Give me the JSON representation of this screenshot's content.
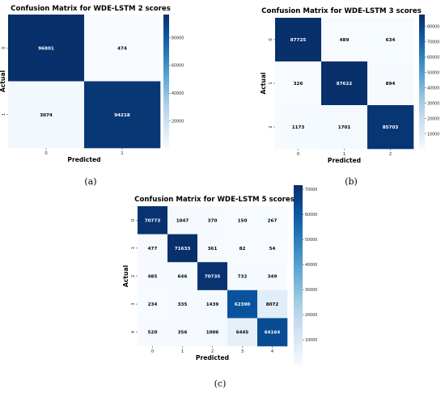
{
  "chart_data": [
    {
      "type": "heatmap",
      "title": "Confusion Matrix for WDE-LSTM 2 scores",
      "xlabel": "Predicted",
      "ylabel": "Actual",
      "x_ticks": [
        "0",
        "1"
      ],
      "y_ticks": [
        "0",
        "1"
      ],
      "matrix": [
        [
          96801,
          474
        ],
        [
          3074,
          94218
        ]
      ],
      "colorbar": {
        "min": 474,
        "max": 96801,
        "ticks": [
          20000,
          40000,
          60000,
          80000
        ]
      },
      "caption": "(a)"
    },
    {
      "type": "heatmap",
      "title": "Confusion Matrix for WDE-LSTM 3 scores",
      "xlabel": "Predicted",
      "ylabel": "Actual",
      "x_ticks": [
        "0",
        "1",
        "2"
      ],
      "y_ticks": [
        "0",
        "1",
        "2"
      ],
      "matrix": [
        [
          87725,
          489,
          634
        ],
        [
          326,
          87622,
          894
        ],
        [
          1173,
          1701,
          85703
        ]
      ],
      "colorbar": {
        "min": 326,
        "max": 87725,
        "ticks": [
          10000,
          20000,
          30000,
          40000,
          50000,
          60000,
          70000,
          80000
        ]
      },
      "caption": "(b)"
    },
    {
      "type": "heatmap",
      "title": "Confusion Matrix for WDE-LSTM 5 scores",
      "xlabel": "Predicted",
      "ylabel": "Actual",
      "x_ticks": [
        "0",
        "1",
        "2",
        "3",
        "4"
      ],
      "y_ticks": [
        "0",
        "1",
        "2",
        "3",
        "4"
      ],
      "matrix": [
        [
          70773,
          1047,
          370,
          150,
          267
        ],
        [
          477,
          71633,
          361,
          82,
          54
        ],
        [
          485,
          646,
          70735,
          732,
          349
        ],
        [
          234,
          335,
          1439,
          62390,
          8072
        ],
        [
          520,
          356,
          1006,
          6445,
          64164
        ]
      ],
      "colorbar": {
        "min": 54,
        "max": 71633,
        "ticks": [
          10000,
          20000,
          30000,
          40000,
          50000,
          60000,
          70000
        ]
      },
      "caption": "(c)"
    }
  ],
  "colors": {
    "low": "#f7fbff",
    "high": "#08306b",
    "dark_text": "#000000",
    "light_text": "#ffffff"
  }
}
